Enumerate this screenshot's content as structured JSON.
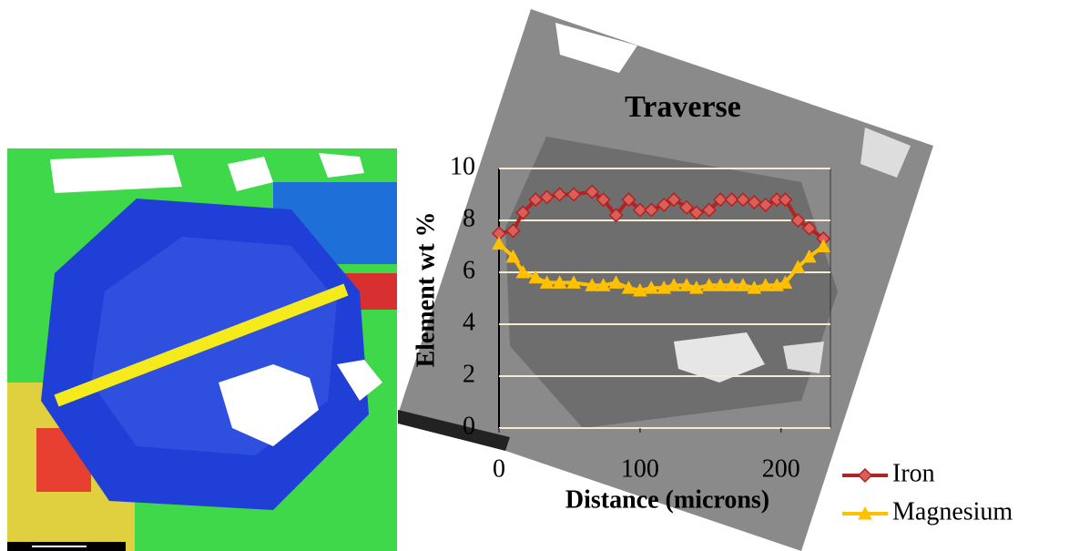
{
  "chart_data": {
    "type": "line",
    "title": "Traverse",
    "x_label": "Distance (microns)",
    "y_label": "Element wt %",
    "x": [
      0,
      10,
      17,
      26,
      34,
      43,
      53,
      66,
      74,
      83,
      92,
      100,
      108,
      117,
      124,
      133,
      140,
      149,
      157,
      165,
      173,
      181,
      189,
      197,
      203,
      212,
      220,
      230
    ],
    "series": [
      {
        "name": "Iron",
        "color": "#b22222",
        "marker": "diamond",
        "values": [
          7.5,
          7.6,
          8.3,
          8.8,
          8.9,
          9.0,
          9.0,
          9.1,
          8.8,
          8.2,
          8.8,
          8.4,
          8.4,
          8.6,
          8.8,
          8.5,
          8.3,
          8.4,
          8.8,
          8.8,
          8.8,
          8.7,
          8.6,
          8.8,
          8.8,
          8.0,
          7.7,
          7.3
        ]
      },
      {
        "name": "Magnesium",
        "color": "#ffc000",
        "marker": "triangle",
        "values": [
          7.1,
          6.6,
          6.0,
          5.8,
          5.6,
          5.6,
          5.6,
          5.5,
          5.5,
          5.6,
          5.4,
          5.3,
          5.4,
          5.4,
          5.5,
          5.5,
          5.4,
          5.5,
          5.5,
          5.5,
          5.5,
          5.4,
          5.5,
          5.5,
          5.6,
          6.2,
          6.6,
          7.0
        ]
      }
    ],
    "xlim": [
      0,
      235
    ],
    "xticks": [
      0,
      100,
      200
    ],
    "ylim": [
      0,
      10
    ],
    "yticks": [
      0,
      2,
      4,
      6,
      8,
      10
    ],
    "grid": true,
    "legend": "right"
  }
}
